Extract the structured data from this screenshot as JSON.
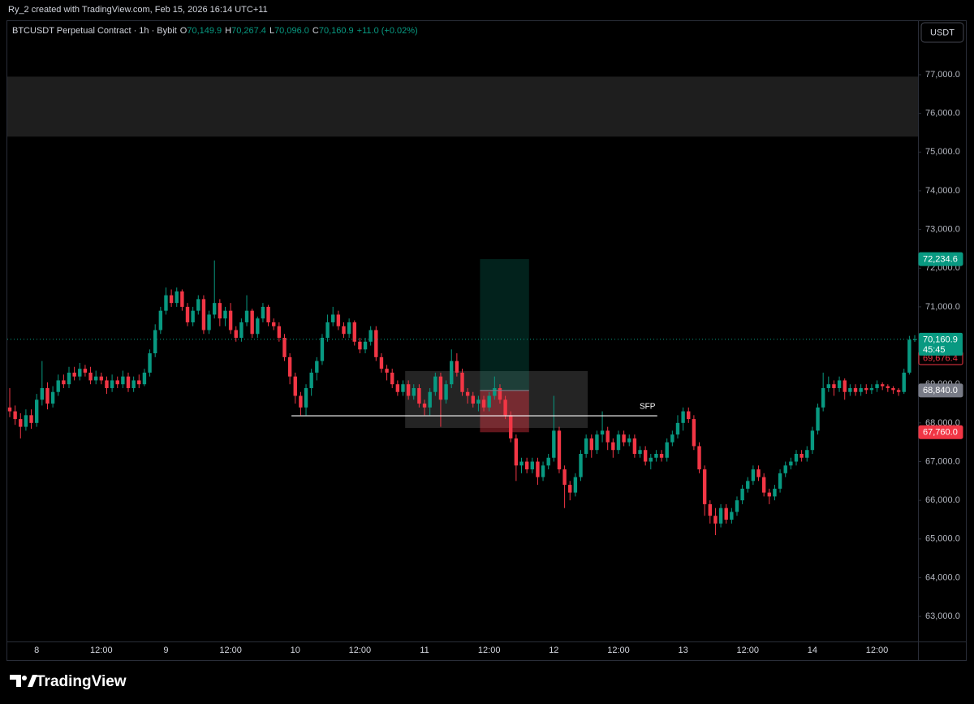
{
  "header": {
    "credit": "Ry_2 created with TradingView.com, Feb 15, 2026 16:14 UTC+11"
  },
  "footer": {
    "brand": "TradingView"
  },
  "chart_data": {
    "type": "candlestick",
    "legend": {
      "symbol": "BTCUSDT Perpetual Contract · 1h · Bybit",
      "items": [
        {
          "key": "O",
          "value": "70,149.9"
        },
        {
          "key": "H",
          "value": "70,267.4"
        },
        {
          "key": "L",
          "value": "70,096.0"
        },
        {
          "key": "C",
          "value": "70,160.9"
        }
      ],
      "change": "+11.0 (+0.02%)"
    },
    "currency": "USDT",
    "up_color": "#089981",
    "down_color": "#f23645",
    "grid": false,
    "categories": [
      null,
      null,
      null,
      null,
      null,
      "8",
      null,
      null,
      null,
      null,
      null,
      null,
      null,
      null,
      null,
      null,
      null,
      "12:00",
      null,
      null,
      null,
      null,
      null,
      null,
      null,
      null,
      null,
      null,
      null,
      "9",
      null,
      null,
      null,
      null,
      null,
      null,
      null,
      null,
      null,
      null,
      null,
      "12:00",
      null,
      null,
      null,
      null,
      null,
      null,
      null,
      null,
      null,
      null,
      null,
      "10",
      null,
      null,
      null,
      null,
      null,
      null,
      null,
      null,
      null,
      null,
      null,
      "12:00",
      null,
      null,
      null,
      null,
      null,
      null,
      null,
      null,
      null,
      null,
      null,
      "11",
      null,
      null,
      null,
      null,
      null,
      null,
      null,
      null,
      null,
      null,
      null,
      "12:00",
      null,
      null,
      null,
      null,
      null,
      null,
      null,
      null,
      null,
      null,
      null,
      "12",
      null,
      null,
      null,
      null,
      null,
      null,
      null,
      null,
      null,
      null,
      null,
      "12:00",
      null,
      null,
      null,
      null,
      null,
      null,
      null,
      null,
      null,
      null,
      null,
      "13",
      null,
      null,
      null,
      null,
      null,
      null,
      null,
      null,
      null,
      null,
      null,
      "12:00",
      null,
      null,
      null,
      null,
      null,
      null,
      null,
      null,
      null,
      null,
      null,
      "14",
      null,
      null,
      null,
      null,
      null,
      null,
      null,
      null,
      null,
      null,
      null,
      "12:00",
      null,
      null,
      null,
      null,
      null,
      null,
      null
    ],
    "open": [
      68400,
      68300,
      68100,
      67900,
      68200,
      68000,
      68600,
      68900,
      68500,
      68800,
      69100,
      69000,
      69300,
      69200,
      69400,
      69300,
      69100,
      69200,
      69100,
      68900,
      69100,
      69000,
      69200,
      68900,
      69100,
      69000,
      69300,
      69800,
      70400,
      70900,
      71300,
      71100,
      71400,
      71000,
      70600,
      70900,
      71200,
      70400,
      70800,
      71100,
      70700,
      70900,
      70400,
      70200,
      70600,
      70900,
      70300,
      70700,
      71000,
      70600,
      70500,
      70200,
      69700,
      69200,
      68700,
      68400,
      68900,
      69300,
      69600,
      70200,
      70600,
      70800,
      70500,
      70300,
      70600,
      70100,
      69900,
      70100,
      70400,
      69700,
      69400,
      69300,
      69000,
      68800,
      69000,
      68700,
      68900,
      68500,
      68400,
      68800,
      69200,
      68600,
      69000,
      69600,
      69300,
      68800,
      68700,
      68500,
      68600,
      68400,
      68700,
      68900,
      68600,
      68200,
      67600,
      66900,
      67000,
      66800,
      67000,
      66600,
      66900,
      67100,
      67800,
      66800,
      66400,
      66200,
      66600,
      67200,
      67600,
      67300,
      67700,
      67800,
      67500,
      67300,
      67700,
      67500,
      67600,
      67200,
      67300,
      67000,
      67100,
      67200,
      67100,
      67500,
      67700,
      68000,
      68300,
      68100,
      67400,
      66800,
      65900,
      65600,
      65400,
      65800,
      65500,
      65700,
      66000,
      66300,
      66500,
      66800,
      66600,
      66200,
      66100,
      66300,
      66700,
      66900,
      67000,
      67200,
      67100,
      67300,
      67800,
      68400,
      68900,
      69000,
      68900,
      69100,
      68800,
      68900,
      68800,
      68900,
      68850,
      68900,
      69000,
      68950,
      68900,
      68850,
      68800,
      69300,
      70149.9
    ],
    "high": [
      68900,
      68450,
      68250,
      68350,
      68350,
      68750,
      69600,
      69050,
      68950,
      69250,
      69250,
      69450,
      69450,
      69550,
      69500,
      69450,
      69350,
      69300,
      69200,
      69250,
      69200,
      69350,
      69300,
      69200,
      69250,
      69400,
      69900,
      70550,
      71000,
      71500,
      71450,
      71500,
      71450,
      71100,
      71000,
      71300,
      71300,
      70900,
      72200,
      71200,
      71000,
      71100,
      70500,
      70700,
      71300,
      70950,
      70750,
      71100,
      71050,
      70700,
      70600,
      70300,
      69800,
      69300,
      68800,
      69000,
      69400,
      69700,
      70300,
      70800,
      71000,
      70900,
      70600,
      70700,
      70650,
      70200,
      70200,
      70500,
      70500,
      69800,
      69500,
      69400,
      69100,
      69100,
      69100,
      69000,
      69000,
      68600,
      68900,
      69300,
      69300,
      69100,
      69900,
      69800,
      69400,
      68900,
      68800,
      68700,
      68700,
      68800,
      69200,
      69000,
      68700,
      68300,
      67700,
      67100,
      67100,
      67100,
      67100,
      67000,
      67200,
      68700,
      67900,
      66900,
      66500,
      66700,
      67300,
      67700,
      67700,
      67800,
      68300,
      67900,
      67600,
      67800,
      67800,
      67700,
      67700,
      67400,
      67400,
      67200,
      67300,
      67300,
      67600,
      67800,
      68200,
      68400,
      68400,
      68200,
      67500,
      66900,
      66000,
      65800,
      65900,
      65900,
      65800,
      66100,
      66400,
      66600,
      66900,
      66900,
      66700,
      66300,
      66400,
      66800,
      67000,
      67100,
      67300,
      67300,
      67400,
      67900,
      68500,
      69300,
      69200,
      69100,
      69200,
      69150,
      69000,
      69000,
      69000,
      69000,
      69000,
      69100,
      69050,
      69000,
      68950,
      68900,
      69400,
      70250,
      70267.4
    ],
    "low": [
      68150,
      67950,
      67600,
      67800,
      67850,
      67900,
      68450,
      68350,
      68400,
      68700,
      68900,
      68900,
      69100,
      69100,
      69200,
      69000,
      69000,
      69000,
      68750,
      68800,
      68900,
      68900,
      68800,
      68800,
      68900,
      68950,
      69200,
      69700,
      70300,
      70800,
      71000,
      71000,
      70900,
      70500,
      70500,
      70800,
      70300,
      70300,
      70700,
      70500,
      70500,
      70300,
      70100,
      70100,
      70500,
      70200,
      70200,
      70600,
      70500,
      70400,
      70100,
      69600,
      69000,
      68500,
      68200,
      68200,
      68700,
      69100,
      69500,
      70100,
      70500,
      70400,
      70200,
      70200,
      70000,
      69800,
      69800,
      70000,
      69600,
      69300,
      69100,
      68900,
      68700,
      68700,
      68600,
      68600,
      68400,
      68200,
      68200,
      68700,
      67900,
      68500,
      68900,
      69200,
      68700,
      68500,
      68400,
      68300,
      68300,
      68300,
      68600,
      68500,
      68100,
      67500,
      66500,
      66700,
      66700,
      66700,
      66400,
      66500,
      66800,
      67000,
      66700,
      65800,
      66000,
      66100,
      66500,
      67100,
      67100,
      67200,
      67500,
      67300,
      67100,
      67200,
      67400,
      67400,
      67100,
      67100,
      66900,
      66800,
      67000,
      67000,
      67000,
      67400,
      67600,
      67800,
      68000,
      67300,
      66700,
      65600,
      65400,
      65100,
      65300,
      65400,
      65400,
      65600,
      65900,
      66200,
      66400,
      66500,
      66100,
      65900,
      66000,
      66200,
      66600,
      66800,
      66900,
      67000,
      67000,
      67200,
      67700,
      68300,
      68800,
      68700,
      68800,
      68600,
      68700,
      68700,
      68700,
      68750,
      68750,
      68800,
      68850,
      68800,
      68750,
      68700,
      68750,
      69250,
      70096.0
    ],
    "close": [
      68300,
      68100,
      67900,
      68200,
      68000,
      68600,
      68900,
      68500,
      68800,
      69100,
      69000,
      69300,
      69200,
      69400,
      69300,
      69100,
      69200,
      69100,
      68900,
      69100,
      69000,
      69200,
      68900,
      69100,
      69000,
      69300,
      69800,
      70400,
      70900,
      71300,
      71100,
      71400,
      71000,
      70600,
      70900,
      71200,
      70400,
      70800,
      71100,
      70700,
      70900,
      70400,
      70200,
      70600,
      70900,
      70300,
      70700,
      71000,
      70600,
      70500,
      70200,
      69700,
      69200,
      68700,
      68400,
      68900,
      69300,
      69600,
      70200,
      70600,
      70800,
      70500,
      70300,
      70600,
      70100,
      69900,
      70100,
      70400,
      69700,
      69400,
      69300,
      69000,
      68800,
      69000,
      68700,
      68900,
      68500,
      68400,
      68800,
      69200,
      68600,
      69000,
      69600,
      69300,
      68800,
      68700,
      68500,
      68600,
      68400,
      68700,
      68900,
      68600,
      68200,
      67600,
      66900,
      67000,
      66800,
      67000,
      66600,
      66900,
      67100,
      67800,
      66800,
      66400,
      66200,
      66600,
      67200,
      67600,
      67300,
      67700,
      67800,
      67500,
      67300,
      67700,
      67500,
      67600,
      67200,
      67300,
      67000,
      67100,
      67200,
      67100,
      67500,
      67700,
      68000,
      68300,
      68100,
      67400,
      66800,
      65900,
      65600,
      65400,
      65800,
      65500,
      65700,
      66000,
      66300,
      66500,
      66800,
      66600,
      66200,
      66100,
      66300,
      66700,
      66900,
      67000,
      67200,
      67100,
      67300,
      67800,
      68400,
      68900,
      69000,
      68900,
      69100,
      68800,
      68900,
      68800,
      68900,
      68850,
      68900,
      69000,
      68950,
      68900,
      68850,
      68800,
      69300,
      70149.9,
      70160.9
    ],
    "ylim": [
      61890,
      78385
    ],
    "yticks": [
      {
        "value": 63000,
        "label": "63,000.0"
      },
      {
        "value": 64000,
        "label": "64,000.0"
      },
      {
        "value": 65000,
        "label": "65,000.0"
      },
      {
        "value": 66000,
        "label": "66,000.0"
      },
      {
        "value": 67000,
        "label": "67,000.0"
      },
      {
        "value": 68000,
        "label": "68,000.0"
      },
      {
        "value": 69000,
        "label": "69,000.0"
      },
      {
        "value": 70000,
        "label": "70,000.0"
      },
      {
        "value": 71000,
        "label": "71,000.0"
      },
      {
        "value": 72000,
        "label": "72,000.0"
      },
      {
        "value": 73000,
        "label": "73,000.0"
      },
      {
        "value": 74000,
        "label": "74,000.0"
      },
      {
        "value": 75000,
        "label": "75,000.0"
      },
      {
        "value": 76000,
        "label": "76,000.0"
      },
      {
        "value": 77000,
        "label": "77,000.0"
      }
    ],
    "last_price_label": "70,160.9",
    "countdown": "45:45",
    "alert": {
      "value": 69676.4,
      "label": "69,676.4",
      "color": "#f23645"
    },
    "zone": {
      "y": [
        75400,
        76950
      ],
      "color": "#1e1e1e"
    },
    "range_box": {
      "x": [
        73.4,
        107.3
      ],
      "y": [
        67870,
        69340
      ],
      "color": "#2a2a2a"
    },
    "position": {
      "x": [
        87.3,
        96.4
      ],
      "target": {
        "value": 72234.6,
        "label": "72,234.6",
        "color": "#089981"
      },
      "entry": {
        "value": 68840,
        "label": "68,840.0",
        "color": "#787b86"
      },
      "stop": {
        "value": 67760,
        "label": "67,760.0",
        "color": "#f23645"
      }
    },
    "level": {
      "x": [
        52.3,
        120.2
      ],
      "value": 68184,
      "label": "SFP",
      "color": "#ffffff"
    }
  }
}
